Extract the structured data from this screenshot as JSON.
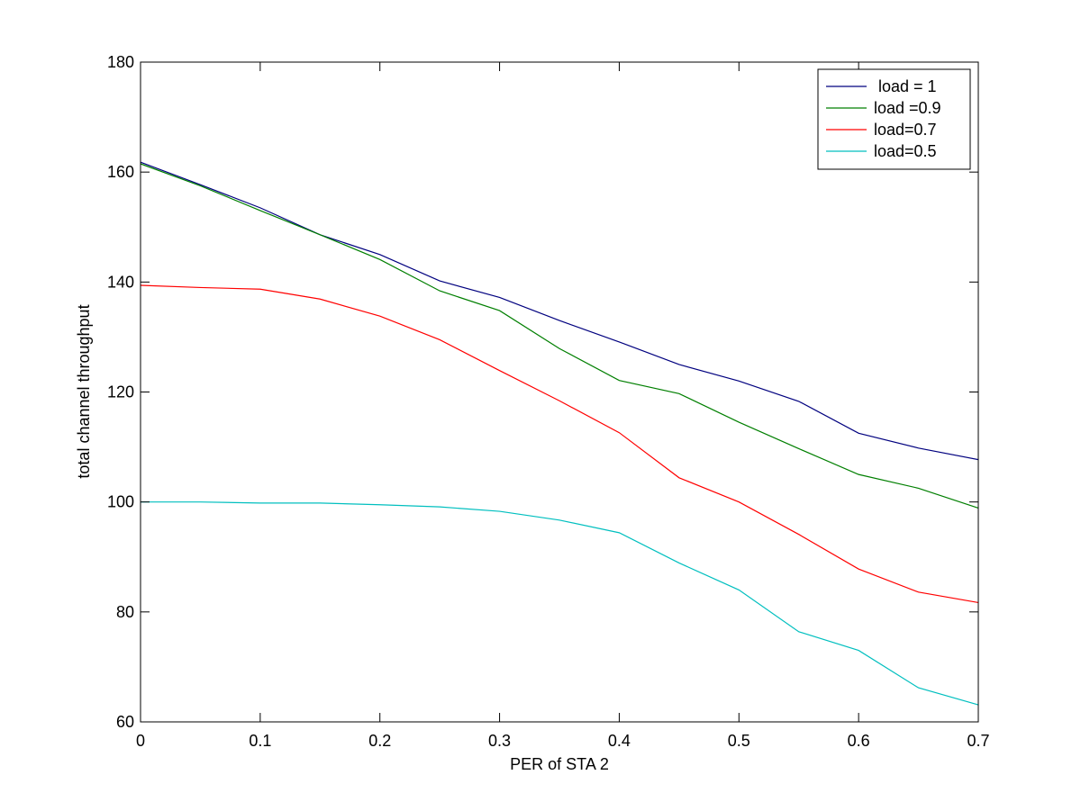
{
  "chart_data": {
    "type": "line",
    "title": "",
    "xlabel": "PER of STA 2",
    "ylabel": "total channel throughput",
    "xlim": [
      0,
      0.7
    ],
    "ylim": [
      60,
      180
    ],
    "xticks": [
      "0",
      "0.1",
      "0.2",
      "0.3",
      "0.4",
      "0.5",
      "0.6",
      "0.7"
    ],
    "yticks": [
      "60",
      "80",
      "100",
      "120",
      "140",
      "160",
      "180"
    ],
    "grid": false,
    "legend_position": "top-right",
    "x": [
      0,
      0.05,
      0.1,
      0.15,
      0.2,
      0.25,
      0.3,
      0.35,
      0.4,
      0.45,
      0.5,
      0.55,
      0.6,
      0.65,
      0.7
    ],
    "series": [
      {
        "name": " load = 1",
        "color": "#00007f",
        "values": [
          161.8,
          157.7,
          153.5,
          148.6,
          145.0,
          140.2,
          137.2,
          133.0,
          129.1,
          125.0,
          122.0,
          118.3,
          112.5,
          109.8,
          107.7
        ]
      },
      {
        "name": "load =0.9",
        "color": "#007f00",
        "values": [
          161.5,
          157.5,
          153.0,
          148.6,
          144.1,
          138.4,
          134.8,
          127.9,
          122.1,
          119.7,
          114.5,
          109.7,
          105.0,
          102.5,
          98.9
        ]
      },
      {
        "name": "load=0.7",
        "color": "#ff0000",
        "values": [
          139.4,
          139.0,
          138.7,
          136.9,
          133.8,
          129.5,
          123.9,
          118.4,
          112.6,
          104.4,
          100.0,
          94.1,
          87.8,
          83.6,
          81.7
        ]
      },
      {
        "name": "load=0.5",
        "color": "#00bfbf",
        "values": [
          100.0,
          100.0,
          99.8,
          99.8,
          99.5,
          99.1,
          98.3,
          96.7,
          94.4,
          88.9,
          84.0,
          76.4,
          73.0,
          66.2,
          63.1
        ]
      }
    ]
  }
}
